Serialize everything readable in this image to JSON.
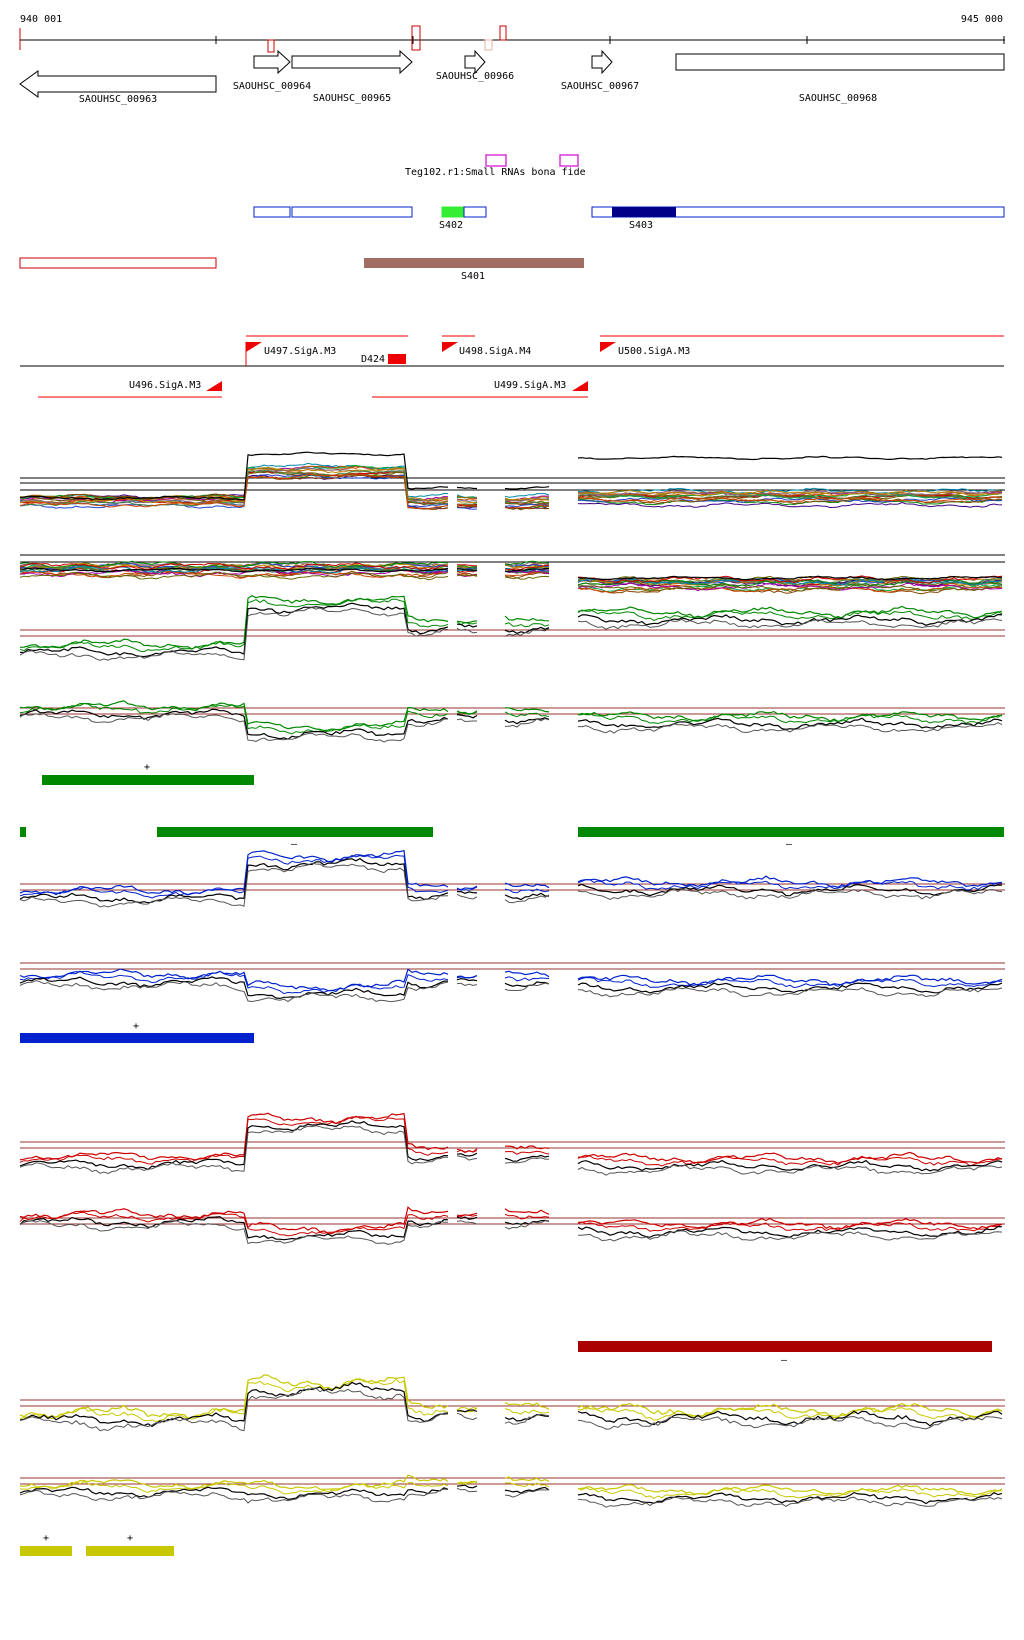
{
  "coordinates": {
    "start": "940 001",
    "end": "945 000"
  },
  "genes": [
    {
      "name": "SAOUHSC_00963",
      "strand": "-"
    },
    {
      "name": "SAOUHSC_00964",
      "strand": "+"
    },
    {
      "name": "SAOUHSC_00965",
      "strand": "+"
    },
    {
      "name": "SAOUHSC_00966",
      "strand": "+"
    },
    {
      "name": "SAOUHSC_00967",
      "strand": "+"
    },
    {
      "name": "SAOUHSC_00968",
      "strand": "none"
    }
  ],
  "small_rna_label": "Teg102.r1:Small RNAs bona fide",
  "segments": [
    "S402",
    "S403",
    "S401"
  ],
  "promoters": [
    "U497.SigA.M3",
    "D424",
    "U498.SigA.M4",
    "U500.SigA.M3",
    "U496.SigA.M3",
    "U499.SigA.M3"
  ],
  "strand_marks": {
    "plus": "+",
    "minus": "–"
  },
  "colors": {
    "green": "#008800",
    "blue": "#0022cc",
    "red": "#cc0000",
    "yellow": "#c8c800",
    "darkred": "#aa0000",
    "brown": "#a06c64",
    "navy": "#000088",
    "magenta": "#dd33dd",
    "promoter": "#ee0000"
  }
}
